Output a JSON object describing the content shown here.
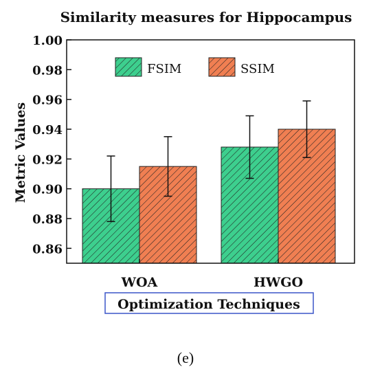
{
  "chart_data": {
    "type": "bar",
    "title": "Similarity measures for Hippocampus",
    "xlabel": "Optimization Techniques",
    "ylabel": "Metric Values",
    "categories": [
      "WOA",
      "HWGO"
    ],
    "ylim": [
      0.85,
      1.0
    ],
    "yticks": [
      "0.86",
      "0.88",
      "0.90",
      "0.92",
      "0.94",
      "0.96",
      "0.98",
      "1.00"
    ],
    "series": [
      {
        "name": "FSIM",
        "values": [
          0.9,
          0.928
        ],
        "errors": [
          0.022,
          0.021
        ],
        "color": "#3dcf8e"
      },
      {
        "name": "SSIM",
        "values": [
          0.915,
          0.94
        ],
        "errors": [
          0.02,
          0.019
        ],
        "color": "#f07f52"
      }
    ],
    "legend_position": "top-center",
    "grid": false,
    "error_bars": true,
    "hatch": "diagonal"
  },
  "panel_label": "(e)"
}
